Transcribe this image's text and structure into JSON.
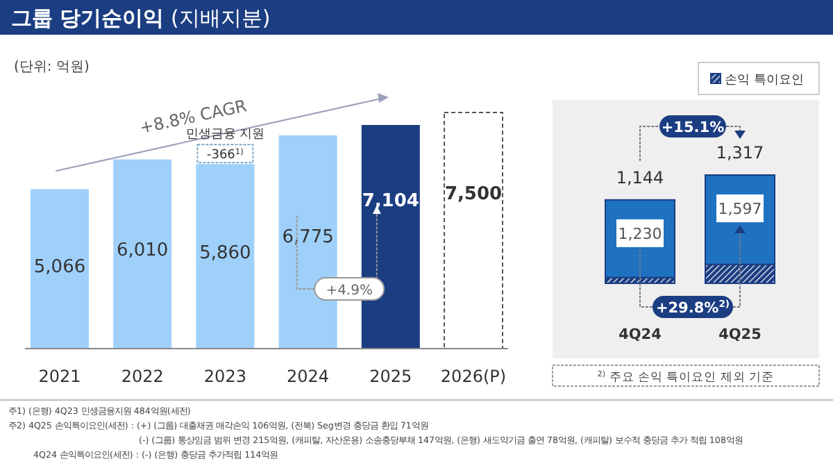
{
  "chart_data": [
    {
      "type": "bar",
      "title": "**그룹 당기순이익** (지배지분)",
      "subtitle": "(단위: 억원)",
      "categories": [
        "2021",
        "2022",
        "2023",
        "2024",
        "2025",
        "2026(P)"
      ],
      "stacked": true,
      "series": [
        {
          "values": [
            5066,
            6010,
            5860,
            6775,
            7104,
            null
          ],
          "colors": [
            "#9fd0fa",
            "#9fd0fa",
            "#9fd0fa",
            "#9fd0fa",
            "#1b3d82",
            null
          ],
          "value_labels": [
            "5,066",
            "6,010",
            "5,860",
            "6,775",
            "7,104",
            null
          ]
        },
        {
          "values": [
            null,
            null,
            null,
            null,
            null,
            7500
          ],
          "color": "#ffffff",
          "line_style": "dashed",
          "value_labels": [
            null,
            null,
            null,
            null,
            null,
            "7,500"
          ]
        }
      ],
      "annotations": [
        "+8.8% CAGR",
        {
          "text": "민생금융 지원",
          "x": "2023",
          "y": 5860
        },
        {
          "text": "-366$^{1)}$",
          "x": "2023",
          "y": 5860
        },
        "+4.9%",
        "주1) (은행) 4Q23 민생금융지원 484억원(세전)",
        "주2) 4Q25 손익특이요인(세전) : (+) (그룹) 대출채권 매각손익 106억원, (전북) Seg변경 충당금 환입 71억원",
        "(-) (그룹) 통상임금 범위 변경 215억원, (캐피탈, 자산운용) 소송충당부채 147억원, (은행) 새도약기금 출연 78억원, (캐피탈) 보수적 충당금 추가 적립 108억원",
        "4Q24 손익특이요인(세전) : (-) (은행) 충당금 추가적립 114억원"
      ]
    },
    {
      "type": "bar",
      "categories": [
        "4Q24",
        "4Q25"
      ],
      "stacked": true,
      "legend": "top right",
      "series": [
        {
          "name": "손익 특이요인",
          "values": [
            86,
            280
          ],
          "color": "#1b3d82"
        },
        {
          "values": [
            1144,
            1317
          ],
          "color": "#1f72c0",
          "value_labels": [
            "1,144",
            "1,317"
          ]
        }
      ],
      "totals": [
        "1,230",
        "1,597"
      ],
      "annotations": [
        "+15.1%",
        "+29.8%$^{2)}$",
        "$^{2)}$ 주요 손익 특이요인 제외 기준"
      ]
    }
  ]
}
